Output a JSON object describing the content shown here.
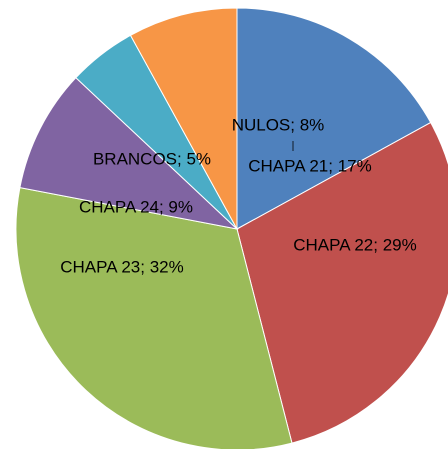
{
  "chart_data": {
    "type": "pie",
    "values": [
      17,
      29,
      32,
      9,
      5,
      8
    ],
    "value_labels": [
      "CHAPA 21; 17%",
      "CHAPA 22; 29%",
      "CHAPA 23; 32%",
      "CHAPA 24; 9%",
      "BRANCOS; 5%",
      "NULOS; 8%"
    ],
    "colors": [
      "#4f81bd",
      "#c0504d",
      "#9bbb59",
      "#8064a2",
      "#4bacc6",
      "#f79646"
    ]
  }
}
